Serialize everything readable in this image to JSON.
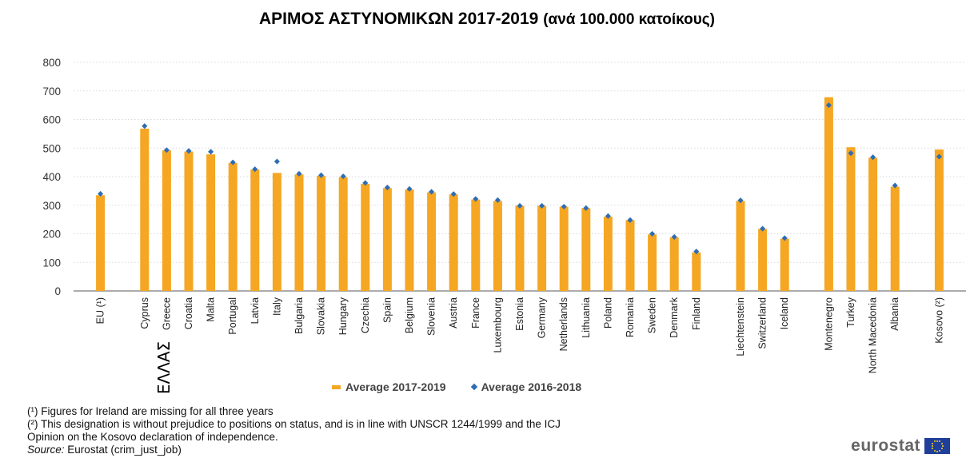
{
  "title": {
    "main": "ΑΡΙΜΟΣ ΑΣΤΥΝΟΜΙΚΩΝ 2017-2019",
    "sub": "(ανά 100.000 κατοίκους)"
  },
  "annotation": "ΕΛΛΑΣ",
  "legend": {
    "series1": "Average 2017-2019",
    "series2": "Average 2016-2018"
  },
  "notes": {
    "n1": "(¹) Figures for Ireland are missing for all three years",
    "n2a": "(²) This designation is without prejudice to positions on status, and is in line with UNSCR 1244/1999 and the ICJ",
    "n2b": "Opinion on the Kosovo declaration of independence.",
    "source_label": "Source:",
    "source_text": "Eurostat (crim_just_job)"
  },
  "logo": "eurostat",
  "colors": {
    "bar": "#F5A623",
    "marker": "#2E6DB4",
    "grid": "#d9d9d9",
    "axis": "#595959"
  },
  "chart_data": {
    "type": "bar",
    "ylim": [
      0,
      800
    ],
    "yticks": [
      0,
      100,
      200,
      300,
      400,
      500,
      600,
      700,
      800
    ],
    "grid": true,
    "legend_position": "bottom",
    "groups": [
      [
        "EU (¹)"
      ],
      [
        "Cyprus",
        "Greece",
        "Croatia",
        "Malta",
        "Portugal",
        "Latvia",
        "Italy",
        "Bulgaria",
        "Slovakia",
        "Hungary",
        "Czechia",
        "Spain",
        "Belgium",
        "Slovenia",
        "Austria",
        "France",
        "Luxembourg",
        "Estonia",
        "Germany",
        "Netherlands",
        "Lithuania",
        "Poland",
        "Romania",
        "Sweden",
        "Denmark",
        "Finland"
      ],
      [
        "Liechtenstein",
        "Switzerland",
        "Iceland"
      ],
      [
        "Montenegro",
        "Turkey",
        "North Macedonia",
        "Albania"
      ],
      [
        "Kosovo (²)"
      ]
    ],
    "categories": [
      "EU (¹)",
      "Cyprus",
      "Greece",
      "Croatia",
      "Malta",
      "Portugal",
      "Latvia",
      "Italy",
      "Bulgaria",
      "Slovakia",
      "Hungary",
      "Czechia",
      "Spain",
      "Belgium",
      "Slovenia",
      "Austria",
      "France",
      "Luxembourg",
      "Estonia",
      "Germany",
      "Netherlands",
      "Lithuania",
      "Poland",
      "Romania",
      "Sweden",
      "Denmark",
      "Finland",
      "Liechtenstein",
      "Switzerland",
      "Iceland",
      "Montenegro",
      "Turkey",
      "North Macedonia",
      "Albania",
      "Kosovo (²)"
    ],
    "series": [
      {
        "name": "Average 2017-2019",
        "values": [
          335,
          568,
          492,
          488,
          478,
          448,
          425,
          413,
          408,
          403,
          398,
          375,
          360,
          355,
          345,
          338,
          320,
          315,
          298,
          298,
          295,
          290,
          260,
          248,
          198,
          188,
          135,
          315,
          217,
          183,
          678,
          503,
          466,
          365,
          495
        ]
      },
      {
        "name": "Average 2016-2018",
        "values": [
          340,
          577,
          493,
          490,
          487,
          450,
          426,
          453,
          410,
          405,
          401,
          378,
          362,
          357,
          347,
          339,
          322,
          318,
          298,
          298,
          295,
          290,
          262,
          248,
          200,
          189,
          138,
          317,
          218,
          185,
          650,
          482,
          468,
          369,
          470
        ]
      }
    ]
  }
}
